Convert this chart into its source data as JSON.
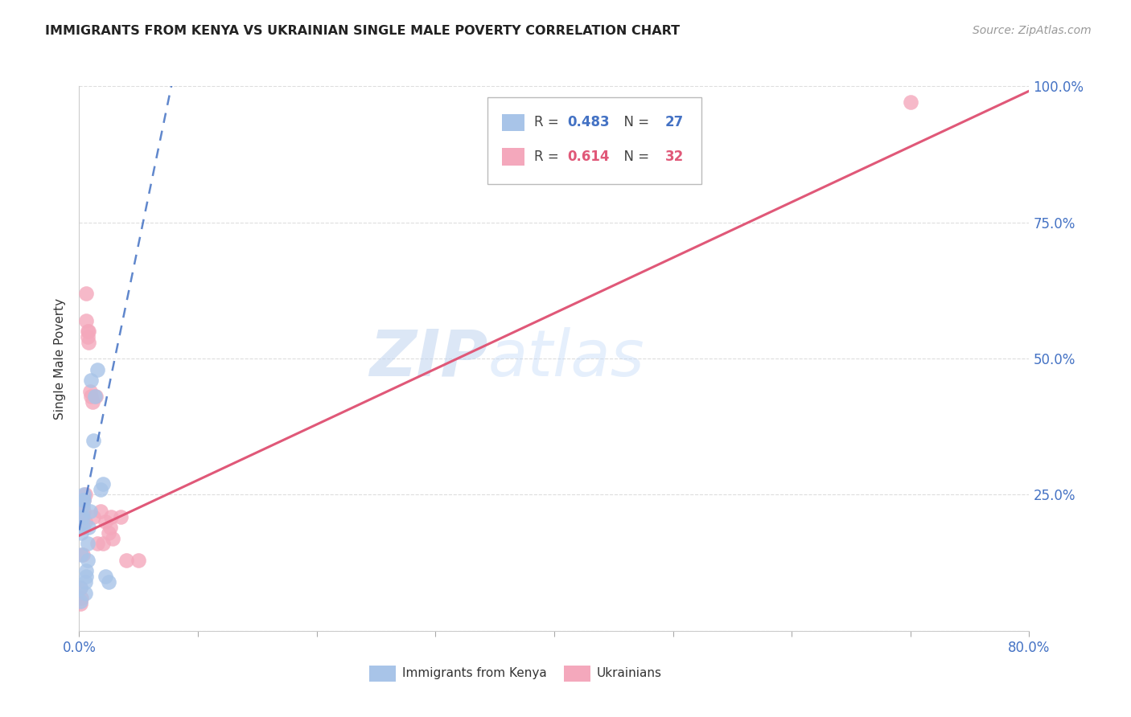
{
  "title": "IMMIGRANTS FROM KENYA VS UKRAINIAN SINGLE MALE POVERTY CORRELATION CHART",
  "source": "Source: ZipAtlas.com",
  "ylabel": "Single Male Poverty",
  "xlim": [
    0.0,
    0.8
  ],
  "ylim": [
    0.0,
    1.0
  ],
  "xtick_positions": [
    0.0,
    0.1,
    0.2,
    0.3,
    0.4,
    0.5,
    0.6,
    0.7,
    0.8
  ],
  "xticklabels": [
    "0.0%",
    "",
    "",
    "",
    "",
    "",
    "",
    "",
    "80.0%"
  ],
  "ytick_positions": [
    0.0,
    0.25,
    0.5,
    0.75,
    1.0
  ],
  "yticklabels_right": [
    "",
    "25.0%",
    "50.0%",
    "75.0%",
    "100.0%"
  ],
  "R_kenya": 0.483,
  "N_kenya": 27,
  "R_ukraine": 0.614,
  "N_ukraine": 32,
  "kenya_scatter_color": "#a8c4e8",
  "ukraine_scatter_color": "#f4a8bc",
  "kenya_line_color": "#4472c4",
  "ukraine_line_color": "#e05878",
  "kenya_label": "Immigrants from Kenya",
  "ukraine_label": "Ukrainians",
  "watermark_zip": "ZIP",
  "watermark_atlas": "atlas",
  "kenya_x": [
    0.001,
    0.001,
    0.002,
    0.002,
    0.002,
    0.003,
    0.003,
    0.003,
    0.003,
    0.004,
    0.004,
    0.005,
    0.005,
    0.006,
    0.006,
    0.007,
    0.007,
    0.008,
    0.009,
    0.01,
    0.012,
    0.013,
    0.015,
    0.018,
    0.02,
    0.022,
    0.025
  ],
  "kenya_y": [
    0.055,
    0.08,
    0.14,
    0.18,
    0.21,
    0.19,
    0.21,
    0.23,
    0.24,
    0.24,
    0.25,
    0.07,
    0.09,
    0.1,
    0.11,
    0.13,
    0.16,
    0.19,
    0.22,
    0.46,
    0.35,
    0.43,
    0.48,
    0.26,
    0.27,
    0.1,
    0.09
  ],
  "ukraine_x": [
    0.001,
    0.001,
    0.002,
    0.003,
    0.003,
    0.004,
    0.004,
    0.005,
    0.005,
    0.006,
    0.006,
    0.007,
    0.007,
    0.008,
    0.008,
    0.009,
    0.01,
    0.011,
    0.012,
    0.014,
    0.015,
    0.018,
    0.02,
    0.022,
    0.025,
    0.026,
    0.027,
    0.028,
    0.035,
    0.04,
    0.05,
    0.7
  ],
  "ukraine_y": [
    0.05,
    0.08,
    0.06,
    0.14,
    0.2,
    0.22,
    0.24,
    0.25,
    0.2,
    0.57,
    0.62,
    0.55,
    0.54,
    0.53,
    0.55,
    0.44,
    0.43,
    0.42,
    0.21,
    0.43,
    0.16,
    0.22,
    0.16,
    0.2,
    0.18,
    0.19,
    0.21,
    0.17,
    0.21,
    0.13,
    0.13,
    0.97
  ],
  "trendline_x_start": 0.0,
  "trendline_x_end": 0.8,
  "kenya_trend_intercept": 0.185,
  "kenya_trend_slope": 10.5,
  "ukraine_trend_intercept": 0.175,
  "ukraine_trend_slope": 1.02
}
